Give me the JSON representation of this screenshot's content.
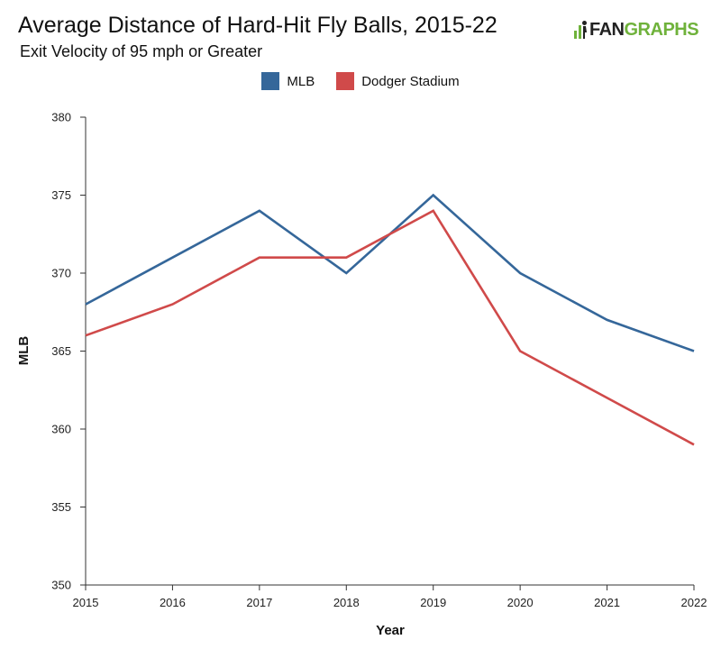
{
  "title": "Average Distance of Hard-Hit Fly Balls, 2015-22",
  "subtitle": "Exit Velocity of 95 mph or Greater",
  "logo": {
    "text_prefix": "FAN",
    "text_suffix": "GRAPHS",
    "icon": "fangraphs-logo-icon",
    "color": "#6fb23b"
  },
  "chart_data": {
    "type": "line",
    "xlabel": "Year",
    "ylabel": "MLB",
    "categories": [
      "2015",
      "2016",
      "2017",
      "2018",
      "2019",
      "2020",
      "2021",
      "2022"
    ],
    "ylim": [
      350,
      380
    ],
    "yticks": [
      "350",
      "355",
      "360",
      "365",
      "370",
      "375",
      "380"
    ],
    "grid": false,
    "legend_position": "top-center",
    "series": [
      {
        "name": "MLB",
        "color": "#35679a",
        "values": [
          368,
          371,
          374,
          370,
          375,
          370,
          367,
          365
        ]
      },
      {
        "name": "Dodger Stadium",
        "color": "#d04a4a",
        "values": [
          366,
          368,
          371,
          371,
          374,
          365,
          362,
          359
        ]
      }
    ]
  }
}
